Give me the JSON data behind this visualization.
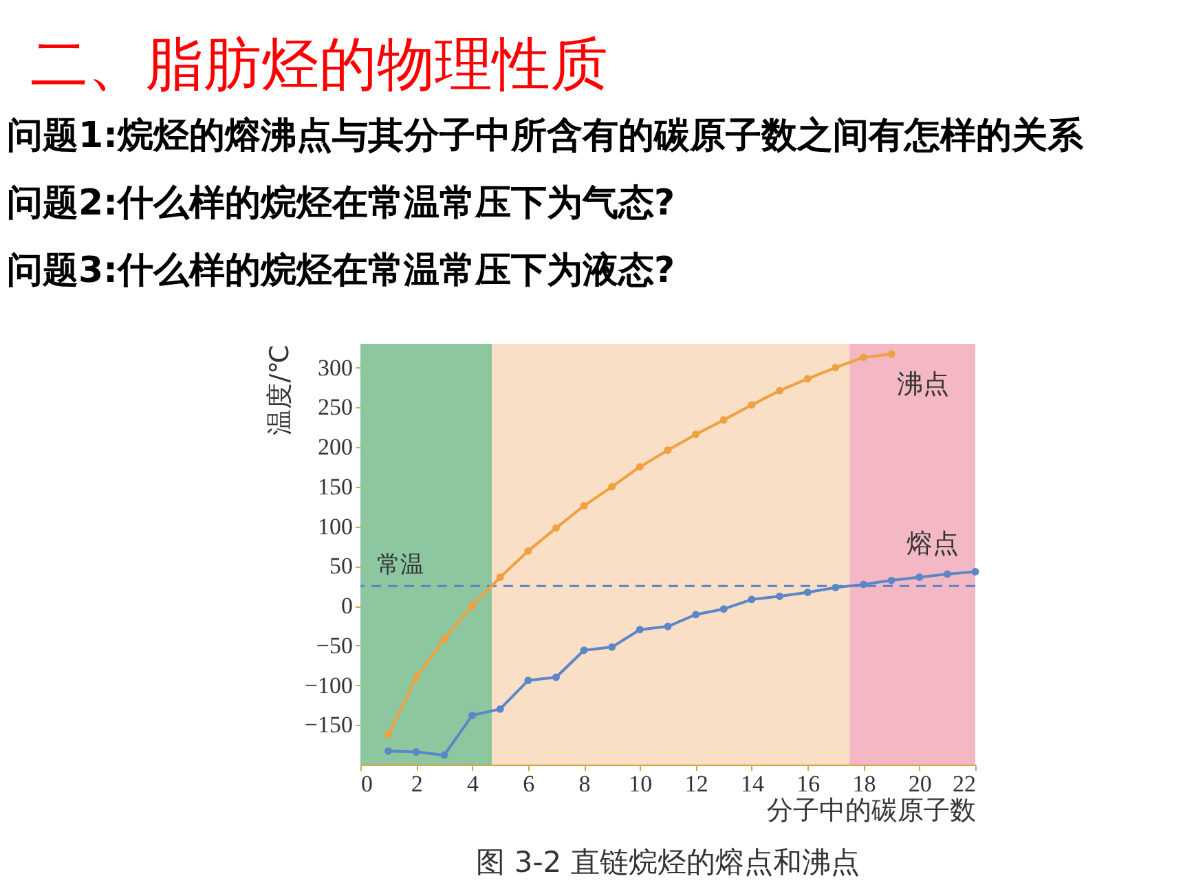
{
  "chart_data": {
    "type": "line",
    "title": "二、脂肪烃的物理性质",
    "xlabel": "分子中的碳原子数",
    "ylabel": "温度/℃",
    "annotations": [
      "问题1:烷烃的熔沸点与其分子中所含有的碳原子数之间有怎样的关系",
      "问题2:什么样的烷烃在常温常压下为气态?",
      "问题3:什么样的烷烃在常温常压下为液态?",
      "图 3-2 直链烷烃的熔点和沸点"
    ],
    "series": [
      {
        "name": "沸点",
        "color": "#f0a040",
        "x": [
          1,
          2,
          3,
          4,
          5,
          6,
          7,
          8,
          9,
          10,
          11,
          12,
          13,
          14,
          15,
          16,
          17,
          18,
          19
        ],
        "values": [
          -162,
          -90,
          -42,
          0,
          36,
          69,
          98,
          126,
          150,
          175,
          196,
          216,
          234,
          253,
          271,
          286,
          300,
          313,
          317
        ]
      },
      {
        "name": "熔点",
        "color": "#5b86c8",
        "x": [
          1,
          2,
          3,
          4,
          5,
          6,
          7,
          8,
          9,
          10,
          11,
          12,
          13,
          14,
          15,
          16,
          17,
          18,
          19,
          20,
          21,
          22
        ],
        "values": [
          -183,
          -184,
          -188,
          -138,
          -130,
          -94,
          -90,
          -56,
          -52,
          -30,
          -26,
          -11,
          -4,
          8,
          12,
          17,
          23,
          27,
          32,
          36,
          40,
          43
        ]
      }
    ],
    "xlim": [
      0,
      22
    ],
    "ylim": [
      -200,
      330
    ],
    "xticks": [
      0,
      2,
      4,
      6,
      8,
      10,
      12,
      14,
      16,
      18,
      20,
      22
    ],
    "yticks": [
      -150,
      -100,
      -50,
      0,
      50,
      100,
      150,
      200,
      250,
      300
    ],
    "bands": [
      {
        "axis": "x",
        "from": 0,
        "to": 4.7,
        "color": "#8cc7a0"
      },
      {
        "axis": "x",
        "from": 4.7,
        "to": 17.5,
        "color": "#f8dfc6"
      },
      {
        "axis": "x",
        "from": 17.5,
        "to": 22,
        "color": "#f4b8c4"
      }
    ],
    "ref_lines": [
      {
        "axis": "y",
        "value": 25,
        "label": "常温",
        "color": "#5b82c9",
        "line_style": "dashed"
      }
    ],
    "marker": "circle",
    "line_style": "solid",
    "legend": false,
    "grid": false
  }
}
